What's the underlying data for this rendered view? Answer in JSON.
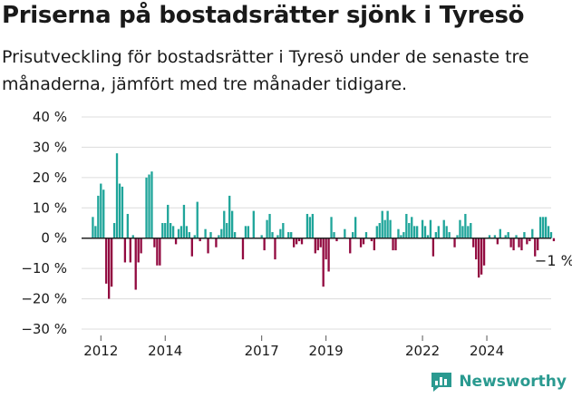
{
  "title": "Priserna på bostadsrätter sjönk i Tyresö",
  "subtitle": "Prisutveckling för bostadsrätter i Tyresö under de senaste tre månaderna, jämfört med tre månader tidigare.",
  "brand": {
    "name": "Newsworthy"
  },
  "colors": {
    "positive": "#1fa59a",
    "negative": "#920a40",
    "grid": "#dcdcdc",
    "zero": "#222222",
    "text": "#1a1a1a"
  },
  "chart_data": {
    "type": "bar",
    "title": "Priserna på bostadsrätter sjönk i Tyresö",
    "xlabel": "",
    "ylabel": "",
    "ylim": [
      -30,
      40
    ],
    "yticks": [
      40,
      30,
      20,
      10,
      0,
      -10,
      -20,
      -30
    ],
    "ytick_suffix": " %",
    "grid": true,
    "x_start": 2011.75,
    "x_step": 0.08333,
    "xticks": [
      {
        "x": 2012,
        "label": "2012"
      },
      {
        "x": 2014,
        "label": "2014"
      },
      {
        "x": 2017,
        "label": "2017"
      },
      {
        "x": 2019,
        "label": "2019"
      },
      {
        "x": 2022,
        "label": "2022"
      },
      {
        "x": 2024,
        "label": "2024"
      }
    ],
    "annotation": {
      "text": "−1 %",
      "value": -1
    },
    "values": [
      7,
      4,
      14,
      18,
      16,
      -15,
      -20,
      -16,
      5,
      28,
      18,
      17,
      -8,
      8,
      -8,
      1,
      -17,
      -8,
      -5,
      0,
      20,
      21,
      22,
      -3,
      -9,
      -9,
      5,
      5,
      11,
      5,
      4,
      -2,
      3,
      4,
      11,
      4,
      2,
      -6,
      1,
      12,
      -1,
      0,
      3,
      -5,
      2,
      0,
      -3,
      1,
      3,
      9,
      5,
      14,
      9,
      2,
      0,
      0,
      -7,
      4,
      4,
      0,
      9,
      0,
      0,
      1,
      -4,
      6,
      8,
      2,
      -7,
      1,
      3,
      5,
      0,
      2,
      2,
      -3,
      -2,
      -1,
      -2,
      0,
      8,
      7,
      8,
      -5,
      -4,
      -3,
      -16,
      -7,
      -11,
      7,
      2,
      -1,
      0,
      0,
      3,
      0,
      -5,
      2,
      7,
      0,
      -3,
      -2,
      2,
      0,
      -1,
      -4,
      4,
      5,
      9,
      6,
      9,
      6,
      -4,
      -4,
      3,
      1,
      2,
      8,
      5,
      7,
      4,
      4,
      0,
      6,
      4,
      1,
      6,
      -6,
      2,
      4,
      0,
      6,
      4,
      2,
      0,
      -3,
      1,
      6,
      4,
      8,
      4,
      5,
      -3,
      -7,
      -13,
      -12,
      -9,
      0,
      1,
      0,
      1,
      -2,
      3,
      0,
      1,
      2,
      -3,
      -4,
      1,
      -3,
      -4,
      2,
      -2,
      -1,
      3,
      -6,
      -4,
      7,
      7,
      7,
      4,
      2,
      -1
    ]
  }
}
